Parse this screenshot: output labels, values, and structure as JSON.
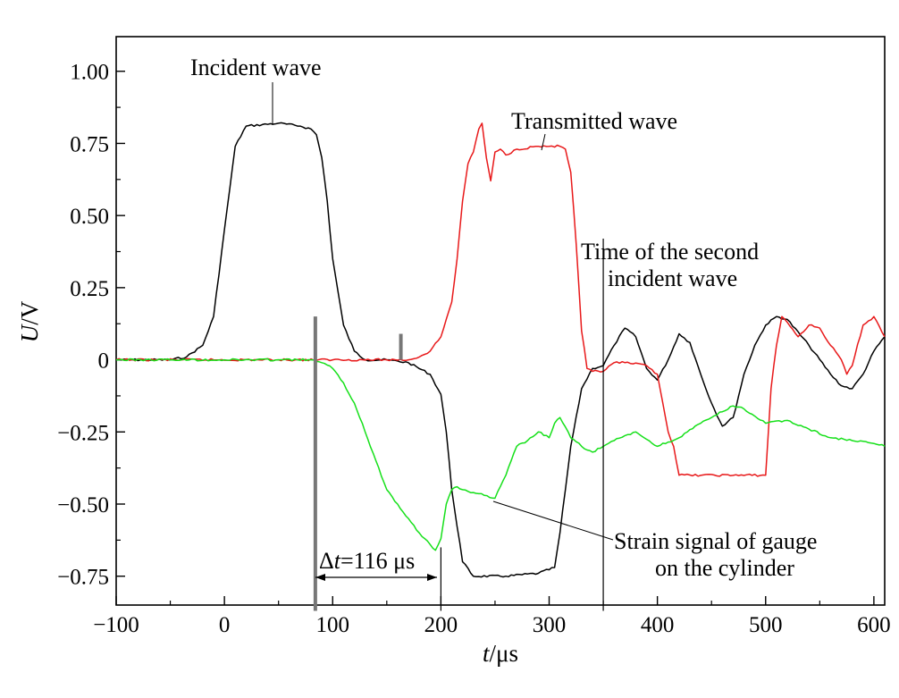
{
  "chart_data": {
    "type": "line",
    "title": "",
    "xlabel": {
      "italic": "t",
      "unit": "/μs"
    },
    "ylabel": {
      "italic": "U",
      "unit": "/V"
    },
    "xlim": [
      -100,
      610
    ],
    "ylim": [
      -0.85,
      1.12
    ],
    "grid": false,
    "legend": "none",
    "x_ticks": [
      -100,
      0,
      100,
      200,
      300,
      400,
      500,
      600
    ],
    "x_tick_labels": [
      "−100",
      "0",
      "100",
      "200",
      "300",
      "400",
      "500",
      "600"
    ],
    "y_ticks": [
      1.0,
      0.75,
      0.5,
      0.25,
      0,
      -0.25,
      -0.5,
      -0.75
    ],
    "y_tick_labels": [
      "1.00",
      "0.75",
      "0.50",
      "0.25",
      "0",
      "−0.25",
      "−0.50",
      "−0.75"
    ],
    "series": [
      {
        "color": "#000000",
        "x": [
          -100,
          -50,
          -35,
          -20,
          -10,
          0,
          10,
          20,
          50,
          70,
          80,
          85,
          90,
          95,
          100,
          110,
          120,
          130,
          150,
          170,
          190,
          200,
          205,
          210,
          220,
          230,
          260,
          290,
          305,
          310,
          315,
          320,
          330,
          340,
          350,
          360,
          370,
          380,
          390,
          400,
          410,
          420,
          430,
          440,
          450,
          460,
          470,
          480,
          490,
          500,
          510,
          520,
          540,
          560,
          570,
          580,
          590,
          600,
          610
        ],
        "y": [
          0.0,
          0.0,
          0.01,
          0.05,
          0.15,
          0.45,
          0.74,
          0.81,
          0.82,
          0.81,
          0.8,
          0.78,
          0.7,
          0.55,
          0.35,
          0.12,
          0.03,
          0.0,
          0.0,
          -0.01,
          -0.05,
          -0.12,
          -0.25,
          -0.45,
          -0.7,
          -0.75,
          -0.75,
          -0.74,
          -0.72,
          -0.6,
          -0.45,
          -0.3,
          -0.1,
          -0.03,
          -0.02,
          0.05,
          0.11,
          0.08,
          -0.03,
          -0.07,
          0.0,
          0.09,
          0.06,
          -0.05,
          -0.15,
          -0.23,
          -0.2,
          -0.05,
          0.05,
          0.12,
          0.15,
          0.14,
          0.05,
          -0.05,
          -0.09,
          -0.1,
          -0.05,
          0.03,
          0.08
        ]
      },
      {
        "color": "#e8191a",
        "x": [
          -100,
          50,
          100,
          150,
          170,
          180,
          190,
          200,
          210,
          215,
          220,
          225,
          230,
          235,
          238,
          242,
          246,
          250,
          255,
          260,
          270,
          290,
          300,
          310,
          315,
          320,
          325,
          330,
          335,
          340,
          350,
          360,
          370,
          390,
          400,
          405,
          410,
          415,
          420,
          500,
          505,
          510,
          515,
          520,
          530,
          540,
          550,
          560,
          570,
          575,
          580,
          590,
          600,
          610
        ],
        "y": [
          0.0,
          0.0,
          0.0,
          0.0,
          0.0,
          0.01,
          0.03,
          0.08,
          0.2,
          0.35,
          0.55,
          0.68,
          0.72,
          0.8,
          0.82,
          0.7,
          0.62,
          0.72,
          0.73,
          0.71,
          0.73,
          0.74,
          0.74,
          0.74,
          0.73,
          0.65,
          0.4,
          0.1,
          -0.03,
          -0.04,
          -0.04,
          -0.01,
          -0.01,
          -0.02,
          -0.05,
          -0.15,
          -0.25,
          -0.3,
          -0.4,
          -0.4,
          -0.1,
          0.05,
          0.15,
          0.13,
          0.08,
          0.12,
          0.11,
          0.05,
          0.0,
          -0.05,
          -0.02,
          0.12,
          0.15,
          0.08
        ]
      },
      {
        "color": "#16e01a",
        "x": [
          -100,
          -50,
          0,
          50,
          80,
          90,
          100,
          110,
          120,
          130,
          140,
          150,
          160,
          170,
          180,
          190,
          195,
          200,
          205,
          210,
          215,
          220,
          230,
          240,
          250,
          260,
          270,
          280,
          290,
          300,
          305,
          310,
          320,
          330,
          340,
          350,
          360,
          380,
          400,
          420,
          440,
          460,
          470,
          480,
          500,
          520,
          540,
          560,
          580,
          600,
          610
        ],
        "y": [
          0.0,
          0.0,
          0.0,
          0.0,
          0.0,
          -0.01,
          -0.03,
          -0.08,
          -0.15,
          -0.25,
          -0.35,
          -0.45,
          -0.5,
          -0.55,
          -0.6,
          -0.64,
          -0.66,
          -0.62,
          -0.5,
          -0.45,
          -0.44,
          -0.45,
          -0.46,
          -0.47,
          -0.48,
          -0.4,
          -0.3,
          -0.28,
          -0.25,
          -0.27,
          -0.22,
          -0.2,
          -0.27,
          -0.3,
          -0.32,
          -0.3,
          -0.28,
          -0.25,
          -0.3,
          -0.27,
          -0.22,
          -0.18,
          -0.16,
          -0.17,
          -0.22,
          -0.21,
          -0.24,
          -0.27,
          -0.28,
          -0.29,
          -0.3
        ]
      }
    ],
    "markers": [
      {
        "x": 84,
        "y_top": 0.15,
        "y_bottom": -0.87,
        "color": "#777777",
        "width": 4
      },
      {
        "x": 163,
        "y_top": 0.09,
        "y_bottom": 0.0,
        "color": "#777777",
        "width": 4
      },
      {
        "x": 200,
        "y_top": -0.65,
        "y_bottom": -0.87,
        "color": "#000000",
        "width": 1.2
      },
      {
        "x": 350,
        "y_top": 0.42,
        "y_bottom": -0.87,
        "color": "#000000",
        "width": 1.2
      }
    ],
    "annotations": {
      "incident": "Incident wave",
      "transmitted": "Transmitted wave",
      "second_line1": "Time of the second",
      "second_line2": "incident wave",
      "strain_line1": "Strain signal of gauge",
      "strain_line2": "on the cylinder",
      "delta_symbol": "Δ",
      "delta_var": "t",
      "delta_value": "=116 μs"
    }
  }
}
